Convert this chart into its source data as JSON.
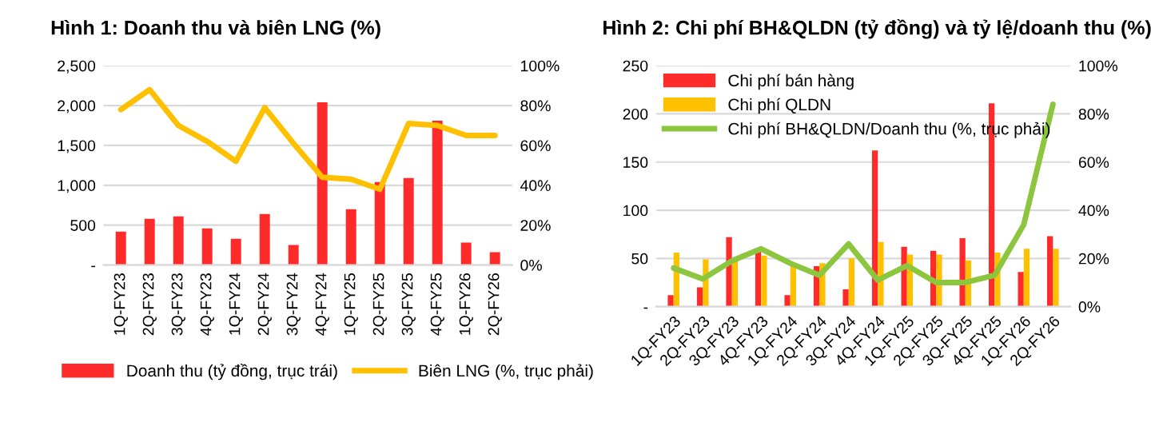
{
  "chart_data": [
    {
      "type": "bar",
      "title": "Hình 1: Doanh thu và biên LNG (%)",
      "categories": [
        "1Q-FY23",
        "2Q-FY23",
        "3Q-FY23",
        "4Q-FY23",
        "1Q-FY24",
        "2Q-FY24",
        "3Q-FY24",
        "4Q-FY24",
        "1Q-FY25",
        "2Q-FY25",
        "3Q-FY25",
        "4Q-FY25",
        "1Q-FY26",
        "2Q-FY26"
      ],
      "series": [
        {
          "name": "Doanh thu (tỷ đồng, trục trái)",
          "color": "#ff2b2b",
          "values": [
            420,
            580,
            610,
            460,
            330,
            640,
            250,
            2040,
            700,
            1040,
            1090,
            1810,
            280,
            160
          ]
        },
        {
          "name": "Biên LNG (%, trục phải)",
          "type": "line",
          "axis": "y2",
          "color": "#ffc000",
          "values": [
            78,
            88,
            70,
            62,
            52,
            79,
            61,
            44,
            43,
            38,
            71,
            70,
            65,
            65
          ]
        }
      ],
      "ylim": [
        0,
        2500
      ],
      "yticks": [
        {
          "value": 0,
          "label": "-"
        },
        {
          "value": 500,
          "label": "500"
        },
        {
          "value": 1000,
          "label": "1,000"
        },
        {
          "value": 1500,
          "label": "1,500"
        },
        {
          "value": 2000,
          "label": "2,000"
        },
        {
          "value": 2500,
          "label": "2,500"
        }
      ],
      "y2lim": [
        0,
        100
      ],
      "y2ticks": [
        {
          "value": 0,
          "label": "0%"
        },
        {
          "value": 20,
          "label": "20%"
        },
        {
          "value": 40,
          "label": "40%"
        },
        {
          "value": 60,
          "label": "60%"
        },
        {
          "value": 80,
          "label": "80%"
        },
        {
          "value": 100,
          "label": "100%"
        }
      ],
      "grid": "y",
      "legend": "bottom",
      "marker": "none"
    },
    {
      "type": "bar",
      "title": "Hình 2: Chi phí BH&QLDN (tỷ đồng) và tỷ lệ/doanh thu (%)",
      "categories": [
        "1Q-FY23",
        "2Q-FY23",
        "3Q-FY23",
        "4Q-FY23",
        "1Q-FY24",
        "2Q-FY24",
        "3Q-FY24",
        "4Q-FY24",
        "1Q-FY25",
        "2Q-FY25",
        "3Q-FY25",
        "4Q-FY25",
        "1Q-FY26",
        "2Q-FY26"
      ],
      "series": [
        {
          "name": "Chi phí bán hàng",
          "color": "#ff2b2b",
          "values": [
            12,
            20,
            72,
            58,
            12,
            42,
            18,
            162,
            62,
            58,
            71,
            211,
            36,
            73
          ]
        },
        {
          "name": "Chi phí QLDN",
          "color": "#ffc000",
          "values": [
            56,
            49,
            47,
            53,
            45,
            45,
            50,
            67,
            54,
            54,
            48,
            56,
            60,
            60
          ]
        },
        {
          "name": "Chi phí BH&QLDN/Doanh thu (%, trục phải)",
          "type": "line",
          "axis": "y2",
          "color": "#8cc63f",
          "values": [
            16,
            11.5,
            19,
            24,
            18,
            13,
            26,
            11,
            17,
            10,
            10,
            13,
            34,
            84
          ]
        }
      ],
      "ylim": [
        0,
        250
      ],
      "yticks": [
        {
          "value": 0,
          "label": "-"
        },
        50,
        100,
        150,
        200,
        250
      ],
      "y2lim": [
        0,
        100
      ],
      "y2ticks": [
        {
          "value": 0,
          "label": "0%"
        },
        {
          "value": 20,
          "label": "20%"
        },
        {
          "value": 40,
          "label": "40%"
        },
        {
          "value": 60,
          "label": "60%"
        },
        {
          "value": 80,
          "label": "80%"
        },
        {
          "value": 100,
          "label": "100%"
        }
      ],
      "grid": "y",
      "legend": "top left",
      "marker": "none"
    }
  ]
}
